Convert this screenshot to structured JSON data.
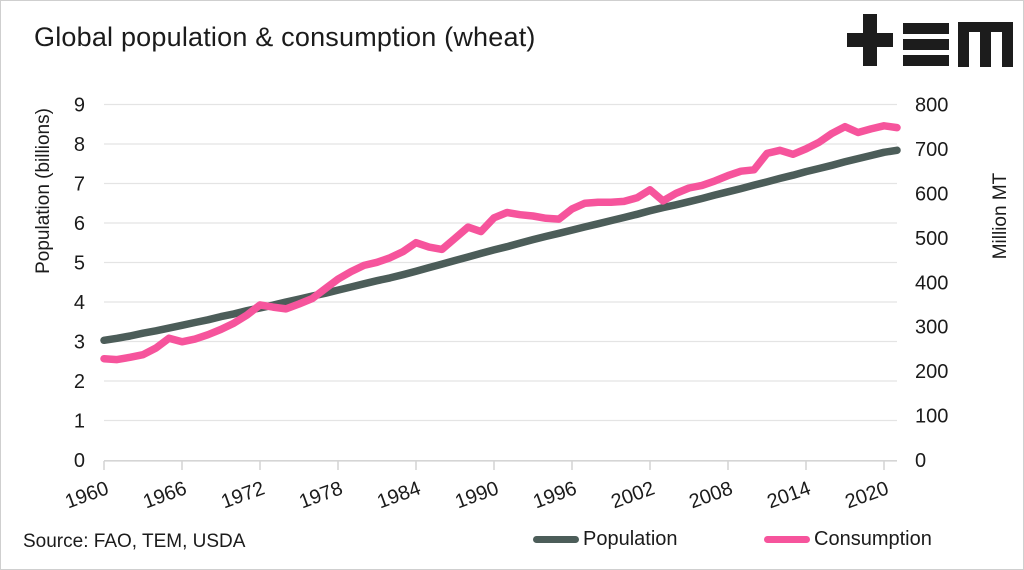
{
  "header": {
    "title": "Global population & consumption (wheat)",
    "logo": "TEM"
  },
  "source": {
    "text": "Source: FAO, TEM, USDA"
  },
  "legend": [
    {
      "label": "Population",
      "color": "#4c5d59"
    },
    {
      "label": "Consumption",
      "color": "#f6549c"
    }
  ],
  "colors": {
    "population": "#4c5d59",
    "consumption": "#f6549c",
    "grid": "#e4e4e4",
    "axis_line": "#d5d5d5",
    "text": "#1b1b1b",
    "background": "#ffffff",
    "logo": "#1c1c1c"
  },
  "chart_data": {
    "type": "line",
    "title": "Global population & consumption (wheat)",
    "grid": true,
    "legend_position": "bottom",
    "x": [
      1960,
      1961,
      1962,
      1963,
      1964,
      1965,
      1966,
      1967,
      1968,
      1969,
      1970,
      1971,
      1972,
      1973,
      1974,
      1975,
      1976,
      1977,
      1978,
      1979,
      1980,
      1981,
      1982,
      1983,
      1984,
      1985,
      1986,
      1987,
      1988,
      1989,
      1990,
      1991,
      1992,
      1993,
      1994,
      1995,
      1996,
      1997,
      1998,
      1999,
      2000,
      2001,
      2002,
      2003,
      2004,
      2005,
      2006,
      2007,
      2008,
      2009,
      2010,
      2011,
      2012,
      2013,
      2014,
      2015,
      2016,
      2017,
      2018,
      2019,
      2020,
      2021
    ],
    "x_ticks": [
      1960,
      1966,
      1972,
      1978,
      1984,
      1990,
      1996,
      2002,
      2008,
      2014,
      2020
    ],
    "left_axis": {
      "label": "Population (billions)",
      "range": [
        0,
        9
      ],
      "ticks": [
        0,
        1,
        2,
        3,
        4,
        5,
        6,
        7,
        8,
        9
      ]
    },
    "right_axis": {
      "label": "Million MT",
      "range": [
        0,
        800
      ],
      "ticks": [
        0,
        100,
        200,
        300,
        400,
        500,
        600,
        700,
        800
      ]
    },
    "series": [
      {
        "name": "Population",
        "axis": "left",
        "color": "#4c5d59",
        "values": [
          3.03,
          3.08,
          3.14,
          3.21,
          3.27,
          3.34,
          3.41,
          3.48,
          3.55,
          3.63,
          3.7,
          3.78,
          3.85,
          3.92,
          4.0,
          4.07,
          4.15,
          4.22,
          4.3,
          4.38,
          4.46,
          4.54,
          4.61,
          4.69,
          4.78,
          4.87,
          4.96,
          5.05,
          5.14,
          5.23,
          5.32,
          5.4,
          5.49,
          5.58,
          5.66,
          5.74,
          5.82,
          5.9,
          5.98,
          6.06,
          6.14,
          6.22,
          6.31,
          6.39,
          6.46,
          6.54,
          6.62,
          6.71,
          6.79,
          6.87,
          6.96,
          7.04,
          7.13,
          7.21,
          7.3,
          7.38,
          7.46,
          7.55,
          7.63,
          7.71,
          7.79,
          7.84
        ]
      },
      {
        "name": "Consumption",
        "axis": "right",
        "color": "#f6549c",
        "values": [
          228,
          226,
          231,
          237,
          252,
          274,
          266,
          272,
          282,
          294,
          308,
          326,
          349,
          344,
          340,
          351,
          363,
          385,
          407,
          424,
          438,
          445,
          455,
          469,
          489,
          479,
          474,
          499,
          524,
          514,
          545,
          557,
          552,
          549,
          544,
          542,
          565,
          578,
          580,
          580,
          582,
          590,
          608,
          583,
          600,
          612,
          618,
          628,
          640,
          650,
          653,
          690,
          697,
          688,
          700,
          715,
          735,
          750,
          737,
          745,
          752,
          748
        ]
      }
    ]
  }
}
